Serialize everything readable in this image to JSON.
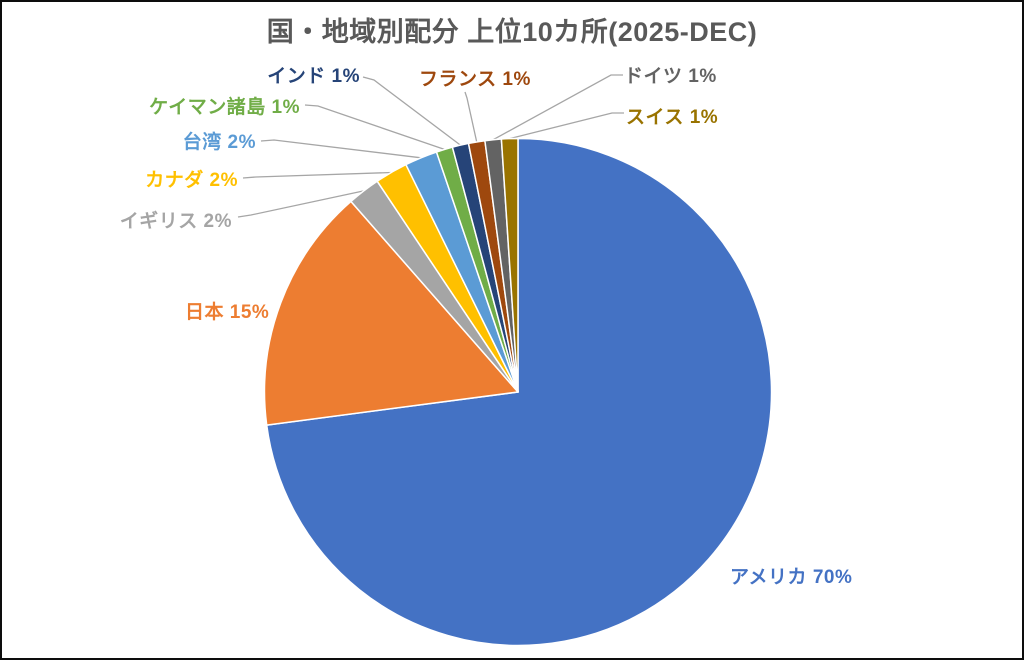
{
  "chart_data": {
    "type": "pie",
    "title": "国・地域別配分 上位10カ所(2025-DEC)",
    "title_color": "#595959",
    "unit": "%",
    "start_angle_deg": 0,
    "direction": "clockwise",
    "legend": "none",
    "label_style": "outside callout, colored to match slice",
    "leader_line_color": "#A6A6A6",
    "background_color": "#FFFFFF",
    "frame_color": "#0D0D0D",
    "slices": [
      {
        "name": "usa",
        "category": "アメリカ",
        "value": 70,
        "label": "アメリカ 70%",
        "color": "#4472C4"
      },
      {
        "name": "japan",
        "category": "日本",
        "value": 15,
        "label": "日本 15%",
        "color": "#ED7D31"
      },
      {
        "name": "uk",
        "category": "イギリス",
        "value": 2,
        "label": "イギリス 2%",
        "color": "#A5A5A5"
      },
      {
        "name": "canada",
        "category": "カナダ",
        "value": 2,
        "label": "カナダ 2%",
        "color": "#FFC000"
      },
      {
        "name": "taiwan",
        "category": "台湾",
        "value": 2,
        "label": "台湾 2%",
        "color": "#5B9BD5"
      },
      {
        "name": "cayman",
        "category": "ケイマン諸島",
        "value": 1,
        "label": "ケイマン諸島 1%",
        "color": "#70AD47"
      },
      {
        "name": "india",
        "category": "インド",
        "value": 1,
        "label": "インド 1%",
        "color": "#264478"
      },
      {
        "name": "france",
        "category": "フランス",
        "value": 1,
        "label": "フランス 1%",
        "color": "#9E480E"
      },
      {
        "name": "germany",
        "category": "ドイツ",
        "value": 1,
        "label": "ドイツ 1%",
        "color": "#636363"
      },
      {
        "name": "switzerland",
        "category": "スイス",
        "value": 1,
        "label": "スイス 1%",
        "color": "#997300"
      }
    ]
  }
}
